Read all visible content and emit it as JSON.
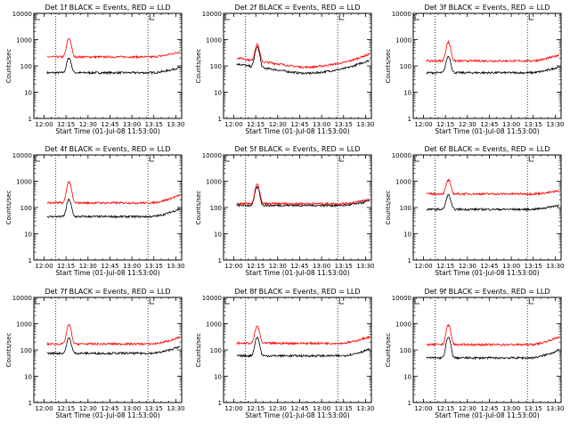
{
  "chart_data": [
    {
      "type": "line",
      "title": "Det 1f BLACK = Events, RED = LLD",
      "xlabel": "Start Time (01-Jul-08 11:53:00)",
      "ylabel": "Counts/sec",
      "scale": "log",
      "ylim": [
        1,
        10000
      ],
      "xticks": [
        "12:00",
        "12:15",
        "12:30",
        "12:45",
        "13:00",
        "13:15",
        "13:30"
      ],
      "yticks": [
        "1",
        "10",
        "100",
        "1000",
        "10000"
      ],
      "xlim": [
        "11:53",
        "13:34"
      ],
      "vlines": [
        "12:08",
        "13:11"
      ],
      "series": [
        {
          "color": "#000000",
          "base": 55,
          "shape": "flat",
          "peak": {
            "t": "12:17",
            "value": 200
          },
          "endRise": 1.6
        },
        {
          "color": "#ff0000",
          "base": 220,
          "shape": "flat",
          "peak": {
            "t": "12:17",
            "value": 1100
          },
          "endRise": 1.6
        }
      ]
    },
    {
      "type": "line",
      "title": "Det 2f BLACK = Events, RED = LLD",
      "xlabel": "Start Time (01-Jul-08 11:53:00)",
      "ylabel": "Counts/sec",
      "scale": "log",
      "ylim": [
        1,
        10000
      ],
      "xticks": [
        "12:00",
        "12:15",
        "12:30",
        "12:45",
        "13:00",
        "13:15",
        "13:30"
      ],
      "yticks": [
        "1",
        "10",
        "100",
        "1000",
        "10000"
      ],
      "xlim": [
        "11:53",
        "13:34"
      ],
      "vlines": [
        "12:08",
        "13:11"
      ],
      "series": [
        {
          "color": "#000000",
          "base": 70,
          "shape": "wave",
          "peak": {
            "t": "12:16",
            "value": 500
          },
          "endRise": 1.9
        },
        {
          "color": "#ff0000",
          "base": 120,
          "shape": "wave",
          "peak": {
            "t": "12:16",
            "value": 620
          },
          "endRise": 1.9
        }
      ]
    },
    {
      "type": "line",
      "title": "Det 3f BLACK = Events, RED = LLD",
      "xlabel": "Start Time (01-Jul-08 11:53:00)",
      "ylabel": "Counts/sec",
      "scale": "log",
      "ylim": [
        1,
        10000
      ],
      "xticks": [
        "12:00",
        "12:15",
        "12:30",
        "12:45",
        "13:00",
        "13:15",
        "13:30"
      ],
      "yticks": [
        "1",
        "10",
        "100",
        "1000",
        "10000"
      ],
      "xlim": [
        "11:53",
        "13:34"
      ],
      "vlines": [
        "12:08",
        "13:11"
      ],
      "series": [
        {
          "color": "#000000",
          "base": 55,
          "shape": "flat",
          "peak": {
            "t": "12:17",
            "value": 230
          },
          "endRise": 1.7
        },
        {
          "color": "#ff0000",
          "base": 155,
          "shape": "flat",
          "peak": {
            "t": "12:17",
            "value": 800
          },
          "endRise": 1.7
        }
      ]
    },
    {
      "type": "line",
      "title": "Det 4f BLACK = Events, RED = LLD",
      "xlabel": "Start Time (01-Jul-08 11:53:00)",
      "ylabel": "Counts/sec",
      "scale": "log",
      "ylim": [
        1,
        10000
      ],
      "xticks": [
        "12:00",
        "12:15",
        "12:30",
        "12:45",
        "13:00",
        "13:15",
        "13:30"
      ],
      "yticks": [
        "1",
        "10",
        "100",
        "1000",
        "10000"
      ],
      "xlim": [
        "11:53",
        "13:34"
      ],
      "vlines": [
        "12:08",
        "13:11"
      ],
      "series": [
        {
          "color": "#000000",
          "base": 45,
          "shape": "flat",
          "peak": {
            "t": "12:17",
            "value": 200
          },
          "endRise": 2.0
        },
        {
          "color": "#ff0000",
          "base": 150,
          "shape": "flat",
          "peak": {
            "t": "12:17",
            "value": 950
          },
          "endRise": 2.0
        }
      ]
    },
    {
      "type": "line",
      "title": "Det 5f BLACK = Events, RED = LLD",
      "xlabel": "Start Time (01-Jul-08 11:53:00)",
      "ylabel": "Counts/sec",
      "scale": "log",
      "ylim": [
        1,
        10000
      ],
      "xticks": [
        "12:00",
        "12:15",
        "12:30",
        "12:45",
        "13:00",
        "13:15",
        "13:30"
      ],
      "yticks": [
        "1",
        "10",
        "100",
        "1000",
        "10000"
      ],
      "xlim": [
        "11:53",
        "13:34"
      ],
      "vlines": [
        "12:08",
        "13:11"
      ],
      "series": [
        {
          "color": "#000000",
          "base": 120,
          "shape": "flat",
          "peak": {
            "t": "12:16",
            "value": 600
          },
          "endRise": 1.5
        },
        {
          "color": "#ff0000",
          "base": 140,
          "shape": "flat",
          "peak": {
            "t": "12:16",
            "value": 750
          },
          "endRise": 1.5
        }
      ]
    },
    {
      "type": "line",
      "title": "Det 6f BLACK = Events, RED = LLD",
      "xlabel": "Start Time (01-Jul-08 11:53:00)",
      "ylabel": "Counts/sec",
      "scale": "log",
      "ylim": [
        1,
        10000
      ],
      "xticks": [
        "12:00",
        "12:15",
        "12:30",
        "12:45",
        "13:00",
        "13:15",
        "13:30"
      ],
      "yticks": [
        "1",
        "10",
        "100",
        "1000",
        "10000"
      ],
      "xlim": [
        "11:53",
        "13:34"
      ],
      "vlines": [
        "12:08",
        "13:11"
      ],
      "series": [
        {
          "color": "#000000",
          "base": 85,
          "shape": "flat",
          "peak": {
            "t": "12:17",
            "value": 300
          },
          "endRise": 1.5
        },
        {
          "color": "#ff0000",
          "base": 330,
          "shape": "flat",
          "peak": {
            "t": "12:17",
            "value": 1100
          },
          "endRise": 1.3
        }
      ]
    },
    {
      "type": "line",
      "title": "Det 7f BLACK = Events, RED = LLD",
      "xlabel": "Start Time (01-Jul-08 11:53:00)",
      "ylabel": "Counts/sec",
      "scale": "log",
      "ylim": [
        1,
        10000
      ],
      "xticks": [
        "12:00",
        "12:15",
        "12:30",
        "12:45",
        "13:00",
        "13:15",
        "13:30"
      ],
      "yticks": [
        "1",
        "10",
        "100",
        "1000",
        "10000"
      ],
      "xlim": [
        "11:53",
        "13:34"
      ],
      "vlines": [
        "12:08",
        "13:11"
      ],
      "series": [
        {
          "color": "#000000",
          "base": 75,
          "shape": "flat",
          "peak": {
            "t": "12:17",
            "value": 280
          },
          "endRise": 1.8
        },
        {
          "color": "#ff0000",
          "base": 170,
          "shape": "flat",
          "peak": {
            "t": "12:17",
            "value": 900
          },
          "endRise": 1.8
        }
      ]
    },
    {
      "type": "line",
      "title": "Det 8f BLACK = Events, RED = LLD",
      "xlabel": "Start Time (01-Jul-08 11:53:00)",
      "ylabel": "Counts/sec",
      "scale": "log",
      "ylim": [
        1,
        10000
      ],
      "xticks": [
        "12:00",
        "12:15",
        "12:30",
        "12:45",
        "13:00",
        "13:15",
        "13:30"
      ],
      "yticks": [
        "1",
        "10",
        "100",
        "1000",
        "10000"
      ],
      "xlim": [
        "11:53",
        "13:34"
      ],
      "vlines": [
        "12:08",
        "13:11"
      ],
      "series": [
        {
          "color": "#000000",
          "base": 60,
          "shape": "flat",
          "peak": {
            "t": "12:16",
            "value": 300
          },
          "endRise": 1.8
        },
        {
          "color": "#ff0000",
          "base": 180,
          "shape": "flat",
          "peak": {
            "t": "12:16",
            "value": 800
          },
          "endRise": 1.8
        }
      ]
    },
    {
      "type": "line",
      "title": "Det 9f BLACK = Events, RED = LLD",
      "xlabel": "Start Time (01-Jul-08 11:53:00)",
      "ylabel": "Counts/sec",
      "scale": "log",
      "ylim": [
        1,
        10000
      ],
      "xticks": [
        "12:00",
        "12:15",
        "12:30",
        "12:45",
        "13:00",
        "13:15",
        "13:30"
      ],
      "yticks": [
        "1",
        "10",
        "100",
        "1000",
        "10000"
      ],
      "xlim": [
        "11:53",
        "13:34"
      ],
      "vlines": [
        "12:08",
        "13:11"
      ],
      "series": [
        {
          "color": "#000000",
          "base": 50,
          "shape": "flat",
          "peak": {
            "t": "12:17",
            "value": 300
          },
          "endRise": 2.0
        },
        {
          "color": "#ff0000",
          "base": 160,
          "shape": "flat",
          "peak": {
            "t": "12:17",
            "value": 900
          },
          "endRise": 2.0
        }
      ]
    }
  ]
}
